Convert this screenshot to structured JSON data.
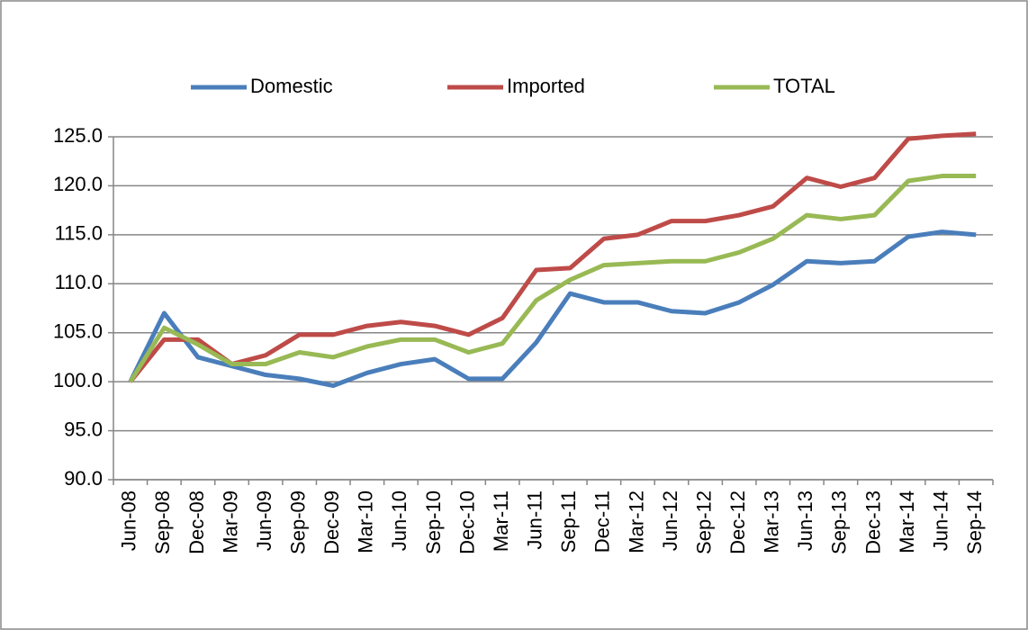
{
  "chart_data": {
    "type": "line",
    "categories": [
      "Jun-08",
      "Sep-08",
      "Dec-08",
      "Mar-09",
      "Jun-09",
      "Sep-09",
      "Dec-09",
      "Mar-10",
      "Jun-10",
      "Sep-10",
      "Dec-10",
      "Mar-11",
      "Jun-11",
      "Sep-11",
      "Dec-11",
      "Mar-12",
      "Jun-12",
      "Sep-12",
      "Dec-12",
      "Mar-13",
      "Jun-13",
      "Sep-13",
      "Dec-13",
      "Mar-14",
      "Jun-14",
      "Sep-14"
    ],
    "series": [
      {
        "name": "Domestic",
        "color": "#4a7ebb",
        "values": [
          100,
          107.0,
          102.5,
          101.6,
          100.7,
          100.3,
          99.6,
          100.9,
          101.8,
          102.3,
          100.3,
          100.3,
          104.0,
          109.0,
          108.1,
          108.1,
          107.2,
          107.0,
          108.1,
          109.9,
          112.3,
          112.1,
          112.3,
          114.8,
          115.3,
          115.0
        ]
      },
      {
        "name": "Imported",
        "color": "#be4b48",
        "values": [
          100,
          104.3,
          104.3,
          101.8,
          102.7,
          104.8,
          104.8,
          105.7,
          106.1,
          105.7,
          104.8,
          106.5,
          111.4,
          111.6,
          114.6,
          115.0,
          116.4,
          116.4,
          117.0,
          117.9,
          120.8,
          119.9,
          120.8,
          124.8,
          125.1,
          125.3
        ]
      },
      {
        "name": "TOTAL",
        "color": "#98b954",
        "values": [
          100,
          105.5,
          103.8,
          101.8,
          101.8,
          103.0,
          102.5,
          103.6,
          104.3,
          104.3,
          103.0,
          103.9,
          108.3,
          110.4,
          111.9,
          112.1,
          112.3,
          112.3,
          113.2,
          114.6,
          117.0,
          116.6,
          117.0,
          120.5,
          121.0,
          121.0
        ]
      }
    ],
    "ylim": [
      90,
      125
    ],
    "yticks": [
      {
        "value": 90,
        "label": "90.0"
      },
      {
        "value": 95,
        "label": "95.0"
      },
      {
        "value": 100,
        "label": "100.0"
      },
      {
        "value": 105,
        "label": "105.0"
      },
      {
        "value": 110,
        "label": "110.0"
      },
      {
        "value": 115,
        "label": "115.0"
      },
      {
        "value": 120,
        "label": "120.0"
      },
      {
        "value": 125,
        "label": "125.0"
      }
    ],
    "grid": true,
    "legend": "top"
  }
}
